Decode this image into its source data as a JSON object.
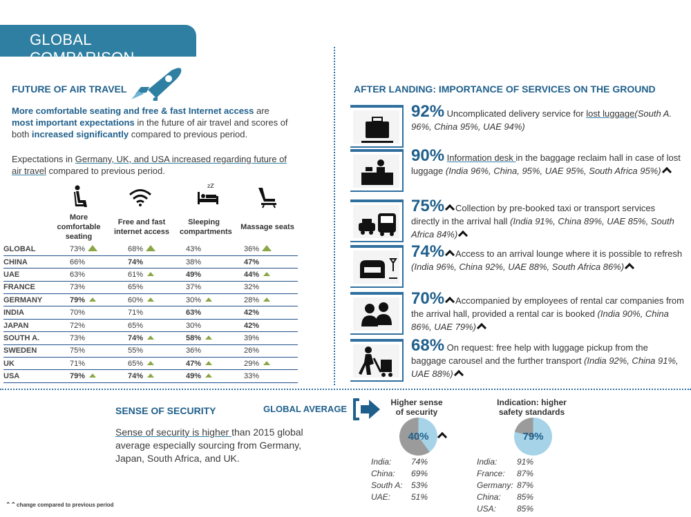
{
  "banner": "GLOBAL COMPARISON",
  "future": {
    "title": "FUTURE OF AIR TRAVEL",
    "p1_a": "More comfortable seating and free & fast Internet access",
    "p1_b": " are ",
    "p1_c": "most important expectations",
    "p1_d": " in the future of air travel and scores of both ",
    "p1_e": "increased significantly",
    "p1_f": " compared to previous period.",
    "p2_a": "Expectations in ",
    "p2_b": " Germany, UK, and USA increased regarding future of air travel",
    "p2_c": " compared to previous period."
  },
  "table": {
    "columns": [
      "More comfortable seating",
      "Free and fast internet access",
      "Sleeping compartments",
      "Massage seats"
    ],
    "rows": [
      {
        "country": "GLOBAL",
        "v": [
          "73%",
          "68%",
          "43%",
          "36%"
        ],
        "bold": [
          false,
          false,
          false,
          false
        ],
        "up": [
          2,
          2,
          0,
          2
        ]
      },
      {
        "country": "CHINA",
        "v": [
          "66%",
          "74%",
          "38%",
          "47%"
        ],
        "bold": [
          false,
          true,
          false,
          true
        ],
        "up": [
          0,
          0,
          0,
          0
        ]
      },
      {
        "country": "UAE",
        "v": [
          "63%",
          "61%",
          "49%",
          "44%"
        ],
        "bold": [
          false,
          false,
          true,
          true
        ],
        "up": [
          0,
          1,
          0,
          1
        ]
      },
      {
        "country": "FRANCE",
        "v": [
          "73%",
          "65%",
          "37%",
          "32%"
        ],
        "bold": [
          false,
          false,
          false,
          false
        ],
        "up": [
          0,
          0,
          0,
          0
        ]
      },
      {
        "country": "GERMANY",
        "v": [
          "79%",
          "60%",
          "30%",
          "28%"
        ],
        "bold": [
          true,
          false,
          false,
          false
        ],
        "up": [
          1,
          1,
          1,
          1
        ]
      },
      {
        "country": "INDIA",
        "v": [
          "70%",
          "71%",
          "63%",
          "42%"
        ],
        "bold": [
          false,
          false,
          true,
          true
        ],
        "up": [
          0,
          0,
          0,
          0
        ]
      },
      {
        "country": "JAPAN",
        "v": [
          "72%",
          "65%",
          "30%",
          "42%"
        ],
        "bold": [
          false,
          false,
          false,
          true
        ],
        "up": [
          0,
          0,
          0,
          0
        ]
      },
      {
        "country": "SOUTH A.",
        "v": [
          "73%",
          "74%",
          "58%",
          "39%"
        ],
        "bold": [
          false,
          true,
          true,
          false
        ],
        "up": [
          0,
          1,
          1,
          0
        ]
      },
      {
        "country": "SWEDEN",
        "v": [
          "75%",
          "55%",
          "36%",
          "26%"
        ],
        "bold": [
          false,
          false,
          false,
          false
        ],
        "up": [
          0,
          0,
          0,
          0
        ]
      },
      {
        "country": "UK",
        "v": [
          "71%",
          "65%",
          "47%",
          "29%"
        ],
        "bold": [
          false,
          false,
          true,
          false
        ],
        "up": [
          0,
          1,
          1,
          1
        ]
      },
      {
        "country": "USA",
        "v": [
          "79%",
          "74%",
          "49%",
          "33%"
        ],
        "bold": [
          true,
          true,
          true,
          false
        ],
        "up": [
          1,
          1,
          1,
          0
        ]
      }
    ]
  },
  "after": {
    "title": "AFTER LANDING: IMPORTANCE OF SERVICES ON THE GROUND",
    "items": [
      {
        "pct": "92%",
        "text": " Uncomplicated delivery service for ",
        "link": "lost luggage",
        "rest": "",
        "detail": "(South A. 96%, China 95%, UAE 94%)",
        "icon": "luggage-icon"
      },
      {
        "pct": "90%",
        "text": " ",
        "link": "Information desk ",
        "rest": "in the baggage reclaim hall in case of lost luggage ",
        "detail": "(India 96%, China, 95%, UAE 95%, South Africa 95%)",
        "icon": "info-desk-icon"
      },
      {
        "pct": "75%",
        "text": "",
        "link": "",
        "rest": "Collection by pre-booked taxi or transport services directly in the arrival hall ",
        "detail": "(India 91%, China 89%, UAE 85%, South Africa 84%)",
        "icon": "taxi-bus-icon"
      },
      {
        "pct": "74%",
        "text": "",
        "link": "",
        "rest": "Access to an arrival lounge where it is possible to refresh ",
        "detail": "(India 96%, China 92%, UAE 88%, South Africa 86%)",
        "icon": "lounge-icon"
      },
      {
        "pct": "70%",
        "text": "",
        "link": "",
        "rest": "Accompanied by employees of rental car companies from the arrival hall, provided a rental car is booked ",
        "detail": "(India 90%, China 86%, UAE 79%)",
        "icon": "people-icon"
      },
      {
        "pct": "68%",
        "text": "",
        "link": "",
        "rest": " On request: free help with luggage pickup from the baggage carousel and the further transport ",
        "detail": "(India 92%, China 91%, UAE 88%)",
        "icon": "porter-icon"
      }
    ]
  },
  "security": {
    "title": "SENSE OF SECURITY",
    "global_avg": "GLOBAL AVERAGE",
    "text_a": "Sense of security is higher ",
    "text_b": "than 2015 global average especially sourcing from Germany, Japan, South Africa, and UK.",
    "pie1": {
      "label": "Higher sense of security",
      "value": 40,
      "display": "40%",
      "countries": [
        [
          "India:",
          "74%"
        ],
        [
          "China:",
          "69%"
        ],
        [
          "South A:",
          "53%"
        ],
        [
          "UAE:",
          "51%"
        ]
      ]
    },
    "pie2": {
      "label": "Indication: higher safety standards",
      "value": 79,
      "display": "79%",
      "countries": [
        [
          "India:",
          "91%"
        ],
        [
          "France:",
          "87%"
        ],
        [
          "Germany:",
          "87%"
        ],
        [
          "China:",
          "85%"
        ],
        [
          "USA:",
          "85%"
        ]
      ]
    }
  },
  "footnote": "change compared to previous period",
  "colors": {
    "accent": "#2f7fa2",
    "dark": "#1f5f8b",
    "green": "#8aa645",
    "pie_grey": "#9b9b9b",
    "pie_blue": "#a6d3e8"
  }
}
